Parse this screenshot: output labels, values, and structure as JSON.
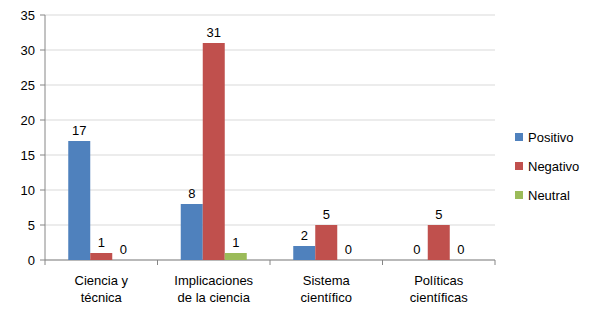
{
  "chart_data": {
    "type": "bar",
    "categories": [
      "Ciencia y técnica",
      "Implicaciones de la ciencia",
      "Sistema científico",
      "Políticas científicas"
    ],
    "series": [
      {
        "name": "Positivo",
        "color": "#4F81BD",
        "values": [
          17,
          8,
          2,
          0
        ]
      },
      {
        "name": "Negativo",
        "color": "#C0504D",
        "values": [
          1,
          31,
          5,
          5
        ]
      },
      {
        "name": "Neutral",
        "color": "#9BBB59",
        "values": [
          0,
          1,
          0,
          0
        ]
      }
    ],
    "ylim": [
      0,
      35
    ],
    "yticks": [
      0,
      5,
      10,
      15,
      20,
      25,
      30,
      35
    ],
    "grid": true,
    "legend": "right",
    "data_labels": true
  }
}
